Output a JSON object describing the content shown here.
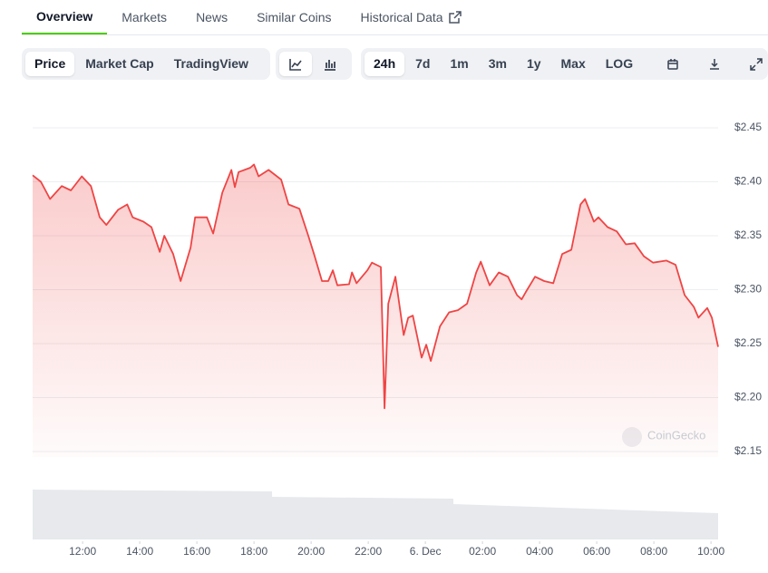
{
  "tabs": {
    "items": [
      "Overview",
      "Markets",
      "News",
      "Similar Coins",
      "Historical Data"
    ],
    "active": "Overview"
  },
  "toolbar": {
    "views": [
      "Price",
      "Market Cap",
      "TradingView"
    ],
    "active_view": "Price",
    "ranges": [
      "24h",
      "7d",
      "1m",
      "3m",
      "1y",
      "Max",
      "LOG"
    ],
    "active_range": "24h"
  },
  "chart_data": {
    "type": "line",
    "watermark": "CoinGecko",
    "color": "#ef4444",
    "grid": true,
    "x": [
      10.25,
      10.54,
      10.86,
      11.27,
      11.59,
      11.97,
      12.29,
      12.6,
      12.83,
      13.24,
      13.56,
      13.75,
      14.13,
      14.41,
      14.7,
      14.86,
      15.17,
      15.43,
      15.78,
      15.94,
      16.35,
      16.57,
      16.89,
      17.21,
      17.33,
      17.46,
      17.87,
      18.0,
      18.16,
      18.51,
      18.95,
      19.21,
      19.59,
      19.9,
      20.1,
      20.38,
      20.6,
      20.76,
      20.92,
      21.33,
      21.43,
      21.59,
      21.97,
      22.13,
      22.44,
      22.57,
      22.7,
      22.95,
      23.24,
      23.4,
      23.56,
      23.87,
      24.03,
      24.19,
      24.51,
      24.83,
      25.14,
      25.46,
      25.78,
      25.94,
      26.25,
      26.57,
      26.89,
      27.21,
      27.37,
      27.52,
      27.84,
      28.16,
      28.48,
      28.79,
      29.11,
      29.43,
      29.59,
      29.9,
      30.06,
      30.38,
      30.7,
      31.02,
      31.33,
      31.65,
      31.97,
      32.44,
      32.76,
      33.08,
      33.4,
      33.56,
      33.87,
      34.03,
      34.25
    ],
    "values": [
      2.406,
      2.4,
      2.384,
      2.396,
      2.392,
      2.405,
      2.396,
      2.367,
      2.36,
      2.374,
      2.379,
      2.367,
      2.363,
      2.358,
      2.335,
      2.35,
      2.333,
      2.308,
      2.339,
      2.367,
      2.367,
      2.352,
      2.39,
      2.411,
      2.395,
      2.409,
      2.413,
      2.416,
      2.405,
      2.411,
      2.402,
      2.379,
      2.375,
      2.35,
      2.333,
      2.308,
      2.308,
      2.318,
      2.304,
      2.305,
      2.316,
      2.306,
      2.318,
      2.325,
      2.321,
      2.19,
      2.287,
      2.312,
      2.258,
      2.274,
      2.276,
      2.237,
      2.249,
      2.234,
      2.266,
      2.279,
      2.281,
      2.287,
      2.316,
      2.326,
      2.304,
      2.316,
      2.312,
      2.295,
      2.291,
      2.298,
      2.312,
      2.308,
      2.306,
      2.333,
      2.337,
      2.379,
      2.384,
      2.363,
      2.367,
      2.358,
      2.354,
      2.342,
      2.343,
      2.331,
      2.325,
      2.327,
      2.323,
      2.295,
      2.284,
      2.274,
      2.283,
      2.274,
      2.247
    ],
    "xlim": [
      10.25,
      34.25
    ],
    "xticks": [
      {
        "value": 12,
        "label": "12:00"
      },
      {
        "value": 14,
        "label": "14:00"
      },
      {
        "value": 16,
        "label": "16:00"
      },
      {
        "value": 18,
        "label": "18:00"
      },
      {
        "value": 20,
        "label": "20:00"
      },
      {
        "value": 22,
        "label": "22:00"
      },
      {
        "value": 24,
        "label": "6. Dec"
      },
      {
        "value": 26,
        "label": "02:00"
      },
      {
        "value": 28,
        "label": "04:00"
      },
      {
        "value": 30,
        "label": "06:00"
      },
      {
        "value": 32,
        "label": "08:00"
      },
      {
        "value": 34,
        "label": "10:00"
      }
    ],
    "ylim": [
      2.145,
      2.455
    ],
    "yticks": [
      {
        "value": 2.15,
        "label": "$2.15"
      },
      {
        "value": 2.2,
        "label": "$2.20"
      },
      {
        "value": 2.25,
        "label": "$2.25"
      },
      {
        "value": 2.3,
        "label": "$2.30"
      },
      {
        "value": 2.35,
        "label": "$2.35"
      },
      {
        "value": 2.4,
        "label": "$2.40"
      },
      {
        "value": 2.45,
        "label": "$2.45"
      }
    ]
  }
}
